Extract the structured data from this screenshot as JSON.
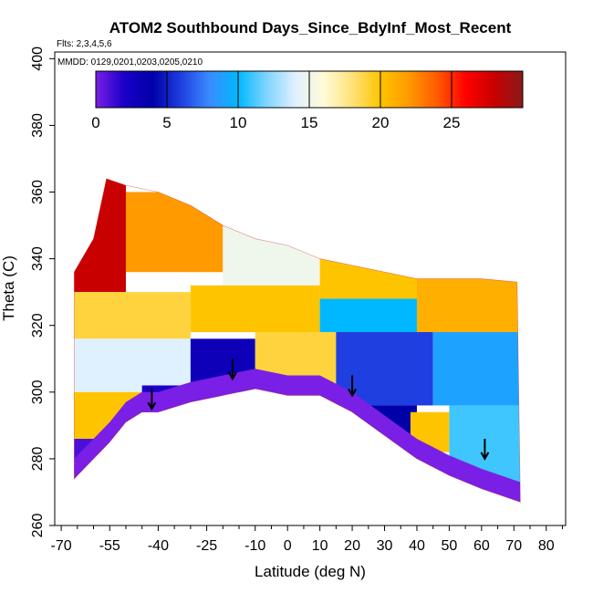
{
  "chart_data": {
    "type": "heatmap",
    "title": "ATOM2 Southbound Days_Since_BdyInf_Most_Recent",
    "subtitle_flights": "Flts: 2,3,4,5,6",
    "subtitle_dates": "MMDD: 0129,0201,0203,0205,0210",
    "xlabel": "Latitude (deg N)",
    "ylabel": "Theta (C)",
    "xlim": [
      -72,
      86
    ],
    "ylim": [
      260,
      402
    ],
    "x_ticks": [
      -70,
      -55,
      -40,
      -25,
      -10,
      0,
      10,
      20,
      30,
      40,
      50,
      60,
      70,
      80
    ],
    "y_ticks": [
      260,
      280,
      300,
      320,
      340,
      360,
      380,
      400
    ],
    "colorbar": {
      "range": [
        0,
        30
      ],
      "ticks": [
        0,
        5,
        10,
        15,
        20,
        25
      ],
      "colors": [
        "#7a1fe6",
        "#1a00c8",
        "#0000a8",
        "#1f3fe0",
        "#3a8cff",
        "#00b8ff",
        "#7fd4ff",
        "#dff0ff",
        "#fffbd8",
        "#ffe27a",
        "#ffc400",
        "#ff9a00",
        "#ff5a00",
        "#ff0000",
        "#c80000",
        "#8a1a1a"
      ]
    },
    "boundary_top": [
      [
        -66,
        336
      ],
      [
        -60,
        346
      ],
      [
        -56,
        364
      ],
      [
        -50,
        362
      ],
      [
        -40,
        360
      ],
      [
        -30,
        356
      ],
      [
        -20,
        350
      ],
      [
        -10,
        346
      ],
      [
        0,
        344
      ],
      [
        10,
        340
      ],
      [
        20,
        338
      ],
      [
        30,
        336
      ],
      [
        40,
        334
      ],
      [
        50,
        334
      ],
      [
        60,
        334
      ],
      [
        71,
        333
      ]
    ],
    "boundary_bottom": [
      [
        -66,
        274
      ],
      [
        -60,
        280
      ],
      [
        -55,
        285
      ],
      [
        -50,
        291
      ],
      [
        -45,
        294
      ],
      [
        -40,
        294
      ],
      [
        -30,
        297
      ],
      [
        -20,
        299
      ],
      [
        -10,
        301
      ],
      [
        0,
        299
      ],
      [
        10,
        299
      ],
      [
        20,
        294
      ],
      [
        30,
        287
      ],
      [
        40,
        280
      ],
      [
        50,
        275
      ],
      [
        60,
        271
      ],
      [
        72,
        267
      ]
    ],
    "arrows": [
      [
        -42,
        295
      ],
      [
        -17,
        304
      ],
      [
        20,
        299
      ],
      [
        61,
        280
      ]
    ],
    "bands": [
      {
        "lat_from": -66,
        "lat_to": -50,
        "theta_from": 330,
        "theta_to": 364,
        "value": 28
      },
      {
        "lat_from": -50,
        "lat_to": -20,
        "theta_from": 336,
        "theta_to": 360,
        "value": 22
      },
      {
        "lat_from": -20,
        "lat_to": 10,
        "theta_from": 332,
        "theta_to": 350,
        "value": 15
      },
      {
        "lat_from": 10,
        "lat_to": 40,
        "theta_from": 328,
        "theta_to": 340,
        "value": 20
      },
      {
        "lat_from": 40,
        "lat_to": 72,
        "theta_from": 318,
        "theta_to": 334,
        "value": 21
      },
      {
        "lat_from": -66,
        "lat_to": -30,
        "theta_from": 316,
        "theta_to": 330,
        "value": 19
      },
      {
        "lat_from": -30,
        "lat_to": 10,
        "theta_from": 318,
        "theta_to": 332,
        "value": 20
      },
      {
        "lat_from": 10,
        "lat_to": 40,
        "theta_from": 318,
        "theta_to": 328,
        "value": 10
      },
      {
        "lat_from": -66,
        "lat_to": -30,
        "theta_from": 300,
        "theta_to": 316,
        "value": 14
      },
      {
        "lat_from": -30,
        "lat_to": -10,
        "theta_from": 300,
        "theta_to": 316,
        "value": 3
      },
      {
        "lat_from": -10,
        "lat_to": 15,
        "theta_from": 302,
        "theta_to": 318,
        "value": 19
      },
      {
        "lat_from": 15,
        "lat_to": 45,
        "theta_from": 296,
        "theta_to": 318,
        "value": 6
      },
      {
        "lat_from": 45,
        "lat_to": 72,
        "theta_from": 296,
        "theta_to": 318,
        "value": 9
      },
      {
        "lat_from": -66,
        "lat_to": -45,
        "theta_from": 286,
        "theta_to": 300,
        "value": 20
      },
      {
        "lat_from": -45,
        "lat_to": -20,
        "theta_from": 292,
        "theta_to": 302,
        "value": 2
      },
      {
        "lat_from": 20,
        "lat_to": 40,
        "theta_from": 280,
        "theta_to": 296,
        "value": 4
      },
      {
        "lat_from": 38,
        "lat_to": 50,
        "theta_from": 282,
        "theta_to": 294,
        "value": 20
      },
      {
        "lat_from": 50,
        "lat_to": 72,
        "theta_from": 272,
        "theta_to": 296,
        "value": 11
      },
      {
        "lat_from": -66,
        "lat_to": -55,
        "theta_from": 274,
        "theta_to": 286,
        "value": 1
      }
    ]
  }
}
